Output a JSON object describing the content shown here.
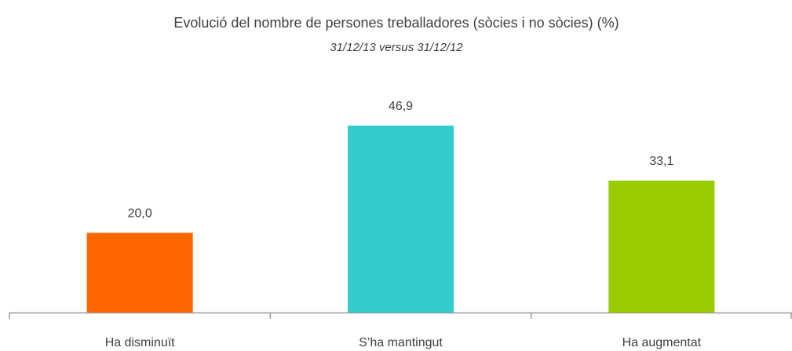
{
  "chart_data": {
    "type": "bar",
    "title": "Evolució del nombre de persones treballadores (sòcies i no sòcies) (%)",
    "subtitle": "31/12/13 versus 31/12/12",
    "categories": [
      "Ha disminuït",
      "S’ha mantingut",
      "Ha augmentat"
    ],
    "values": [
      20.0,
      46.9,
      33.1
    ],
    "value_labels": [
      "20,0",
      "46,9",
      "33,1"
    ],
    "colors": [
      "#ff6600",
      "#33cccc",
      "#99cc00"
    ]
  }
}
